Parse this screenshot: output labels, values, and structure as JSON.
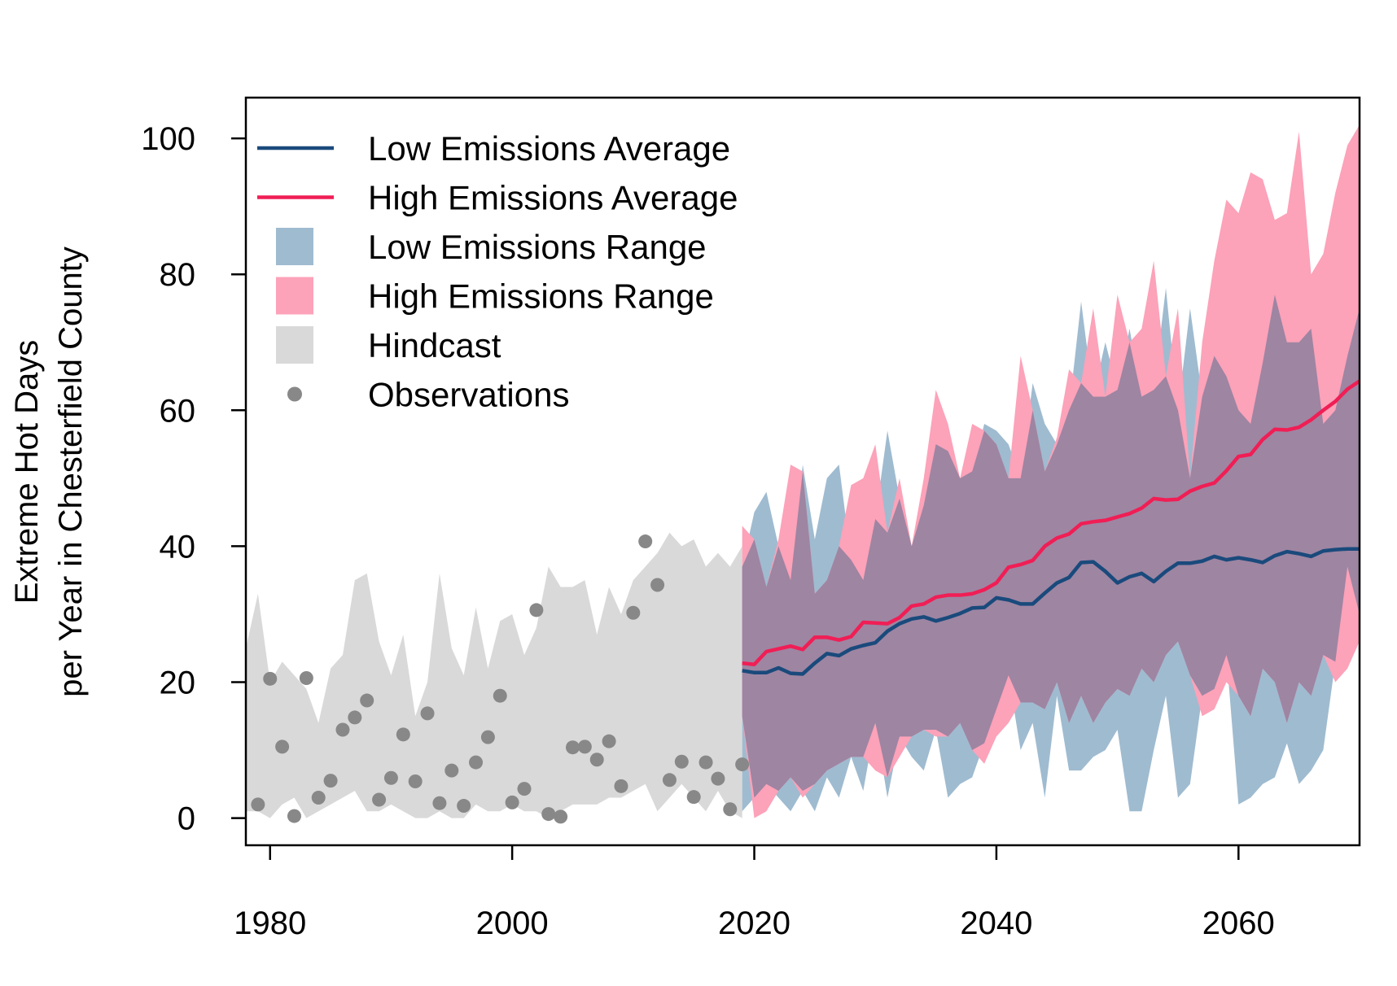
{
  "chart_data": {
    "type": "line",
    "title": "",
    "xlabel": "",
    "ylabel_lines": [
      "Extreme Hot Days",
      "per Year in Chesterfield County"
    ],
    "xlim": [
      1978,
      2070
    ],
    "ylim": [
      -4,
      106
    ],
    "xticks": [
      1980,
      2000,
      2020,
      2040,
      2060
    ],
    "yticks": [
      0,
      20,
      40,
      60,
      80,
      100
    ],
    "grid": false,
    "legend_position": "top-left",
    "colors": {
      "low_line": "#1a4a7c",
      "high_line": "#f01e55",
      "low_range": "#9fbbd0",
      "high_range": "#fca2b9",
      "overlap": "#9e85a2",
      "hindcast": "#d9d9d9",
      "observations": "#888888"
    },
    "legend": [
      {
        "label": "Low Emissions Average",
        "kind": "line",
        "series": "low_line"
      },
      {
        "label": "High Emissions Average",
        "kind": "line",
        "series": "high_line"
      },
      {
        "label": "Low Emissions Range",
        "kind": "box",
        "series": "low_range"
      },
      {
        "label": "High Emissions Range",
        "kind": "box",
        "series": "high_range"
      },
      {
        "label": "Hindcast",
        "kind": "box",
        "series": "hindcast"
      },
      {
        "label": "Observations",
        "kind": "dot",
        "series": "observations"
      }
    ],
    "hindcast": {
      "x": [
        1978,
        1979,
        1980,
        1981,
        1982,
        1983,
        1984,
        1985,
        1986,
        1987,
        1988,
        1989,
        1990,
        1991,
        1992,
        1993,
        1994,
        1995,
        1996,
        1997,
        1998,
        1999,
        2000,
        2001,
        2002,
        2003,
        2004,
        2005,
        2006,
        2007,
        2008,
        2009,
        2010,
        2011,
        2012,
        2013,
        2014,
        2015,
        2016,
        2017,
        2018,
        2019
      ],
      "upper": [
        25,
        33,
        20,
        23,
        21,
        19,
        14,
        22,
        24,
        35,
        36,
        26,
        21,
        27,
        15,
        20,
        36,
        25,
        21,
        31,
        22,
        29,
        30,
        24,
        28,
        37,
        34,
        34,
        35,
        27,
        34,
        30,
        35,
        37,
        39,
        42,
        40,
        41,
        37,
        39,
        37,
        40
      ],
      "lower": [
        1,
        1,
        0,
        2,
        3,
        0,
        1,
        2,
        3,
        4,
        1,
        1,
        2,
        1,
        0,
        0,
        1,
        0,
        0,
        2,
        1,
        1,
        2,
        1,
        1,
        0,
        1,
        2,
        2,
        2,
        3,
        3,
        4,
        5,
        1,
        3,
        5,
        3,
        1,
        4,
        1,
        0
      ]
    },
    "observations": {
      "x": [
        1979,
        1980,
        1981,
        1982,
        1983,
        1984,
        1985,
        1986,
        1987,
        1988,
        1989,
        1990,
        1991,
        1992,
        1993,
        1994,
        1995,
        1996,
        1997,
        1998,
        1999,
        2000,
        2001,
        2002,
        2003,
        2004,
        2005,
        2006,
        2007,
        2008,
        2009,
        2010,
        2011,
        2012,
        2013,
        2014,
        2015,
        2016,
        2017,
        2018,
        2019
      ],
      "y": [
        2,
        20.5,
        10.5,
        0.3,
        20.6,
        3,
        5.5,
        13,
        14.8,
        17.3,
        2.7,
        5.9,
        12.3,
        5.4,
        15.4,
        2.2,
        7,
        1.8,
        8.2,
        11.9,
        18,
        2.3,
        4.3,
        30.6,
        0.6,
        0.2,
        10.4,
        10.5,
        8.6,
        11.3,
        4.7,
        30.2,
        40.7,
        34.3,
        5.6,
        8.3,
        3.1,
        8.2,
        5.8,
        1.3,
        7.9
      ]
    },
    "years_projection": [
      2019,
      2020,
      2021,
      2022,
      2023,
      2024,
      2025,
      2026,
      2027,
      2028,
      2029,
      2030,
      2031,
      2032,
      2033,
      2034,
      2035,
      2036,
      2037,
      2038,
      2039,
      2040,
      2041,
      2042,
      2043,
      2044,
      2045,
      2046,
      2047,
      2048,
      2049,
      2050,
      2051,
      2052,
      2053,
      2054,
      2055,
      2056,
      2057,
      2058,
      2059,
      2060,
      2061,
      2062,
      2063,
      2064,
      2065,
      2066,
      2067,
      2068,
      2069,
      2070
    ],
    "low_emissions_range": {
      "upper": [
        37,
        45,
        48,
        40,
        35,
        52,
        41,
        50,
        52,
        38,
        35,
        44,
        57,
        47,
        40,
        46,
        55,
        54,
        50,
        51,
        58,
        57,
        55,
        50,
        64,
        58,
        55,
        60,
        76,
        62,
        70,
        63,
        72,
        62,
        63,
        78,
        60,
        75,
        62,
        68,
        65,
        60,
        58,
        67,
        77,
        70,
        70,
        72,
        58,
        60,
        68,
        75
      ],
      "lower": [
        1,
        3,
        5,
        3,
        1,
        4,
        1,
        6,
        3,
        9,
        4,
        14,
        3,
        12,
        9,
        7,
        13,
        3,
        5,
        6,
        11,
        16,
        21,
        10,
        14,
        3,
        18,
        7,
        7,
        9,
        10,
        13,
        1,
        1,
        10,
        18,
        3,
        5,
        18,
        19,
        24,
        2,
        3,
        5,
        6,
        11,
        5,
        7,
        10,
        23,
        37,
        30
      ]
    },
    "high_emissions_range": {
      "upper": [
        43,
        41,
        34,
        41,
        52,
        51,
        33,
        35,
        40,
        49,
        50,
        55,
        42,
        50,
        40,
        50,
        63,
        58,
        50,
        58,
        57,
        55,
        50,
        68,
        60,
        51,
        56,
        66,
        64,
        75,
        62,
        77,
        70,
        72,
        82,
        65,
        75,
        50,
        70,
        82,
        91,
        89,
        95,
        94,
        88,
        89,
        101,
        80,
        83,
        92,
        99,
        102
      ],
      "lower": [
        15,
        0,
        1,
        4,
        6,
        3,
        5,
        7,
        8,
        9,
        9,
        7,
        6,
        9,
        12,
        13,
        12,
        12,
        14,
        10,
        8,
        12,
        14,
        17,
        17,
        16,
        20,
        14,
        18,
        14,
        17,
        19,
        18,
        22,
        20,
        24,
        26,
        21,
        15,
        16,
        20,
        18,
        15,
        22,
        20,
        14,
        20,
        18,
        24,
        20,
        22,
        26
      ]
    },
    "low_emissions_average": [
      21.7,
      21.4,
      21.4,
      22.1,
      21.3,
      21.2,
      22.8,
      24.2,
      23.9,
      24.9,
      25.4,
      25.8,
      27.5,
      28.6,
      29.3,
      29.6,
      29,
      29.5,
      30.1,
      30.9,
      31,
      32.4,
      32.1,
      31.5,
      31.5,
      33.1,
      34.6,
      35.4,
      37.6,
      37.7,
      36.3,
      34.6,
      35.5,
      36,
      34.8,
      36.3,
      37.5,
      37.5,
      37.8,
      38.5,
      38,
      38.3,
      38,
      37.6,
      38.6,
      39.2,
      38.9,
      38.5,
      39.3,
      39.5,
      39.6,
      39.6
    ],
    "high_emissions_average": [
      22.8,
      22.6,
      24.5,
      24.9,
      25.3,
      24.8,
      26.6,
      26.6,
      26.2,
      26.7,
      28.8,
      28.7,
      28.6,
      29.5,
      31.2,
      31.5,
      32.5,
      32.8,
      32.8,
      33,
      33.6,
      34.6,
      36.9,
      37.3,
      37.9,
      40,
      41.2,
      41.8,
      43.3,
      43.6,
      43.8,
      44.3,
      44.8,
      45.6,
      47,
      46.8,
      46.9,
      48.1,
      48.8,
      49.3,
      51.1,
      53.2,
      53.5,
      55.7,
      57.2,
      57.1,
      57.5,
      58.6,
      60,
      61.3,
      63.1,
      64.3
    ]
  }
}
